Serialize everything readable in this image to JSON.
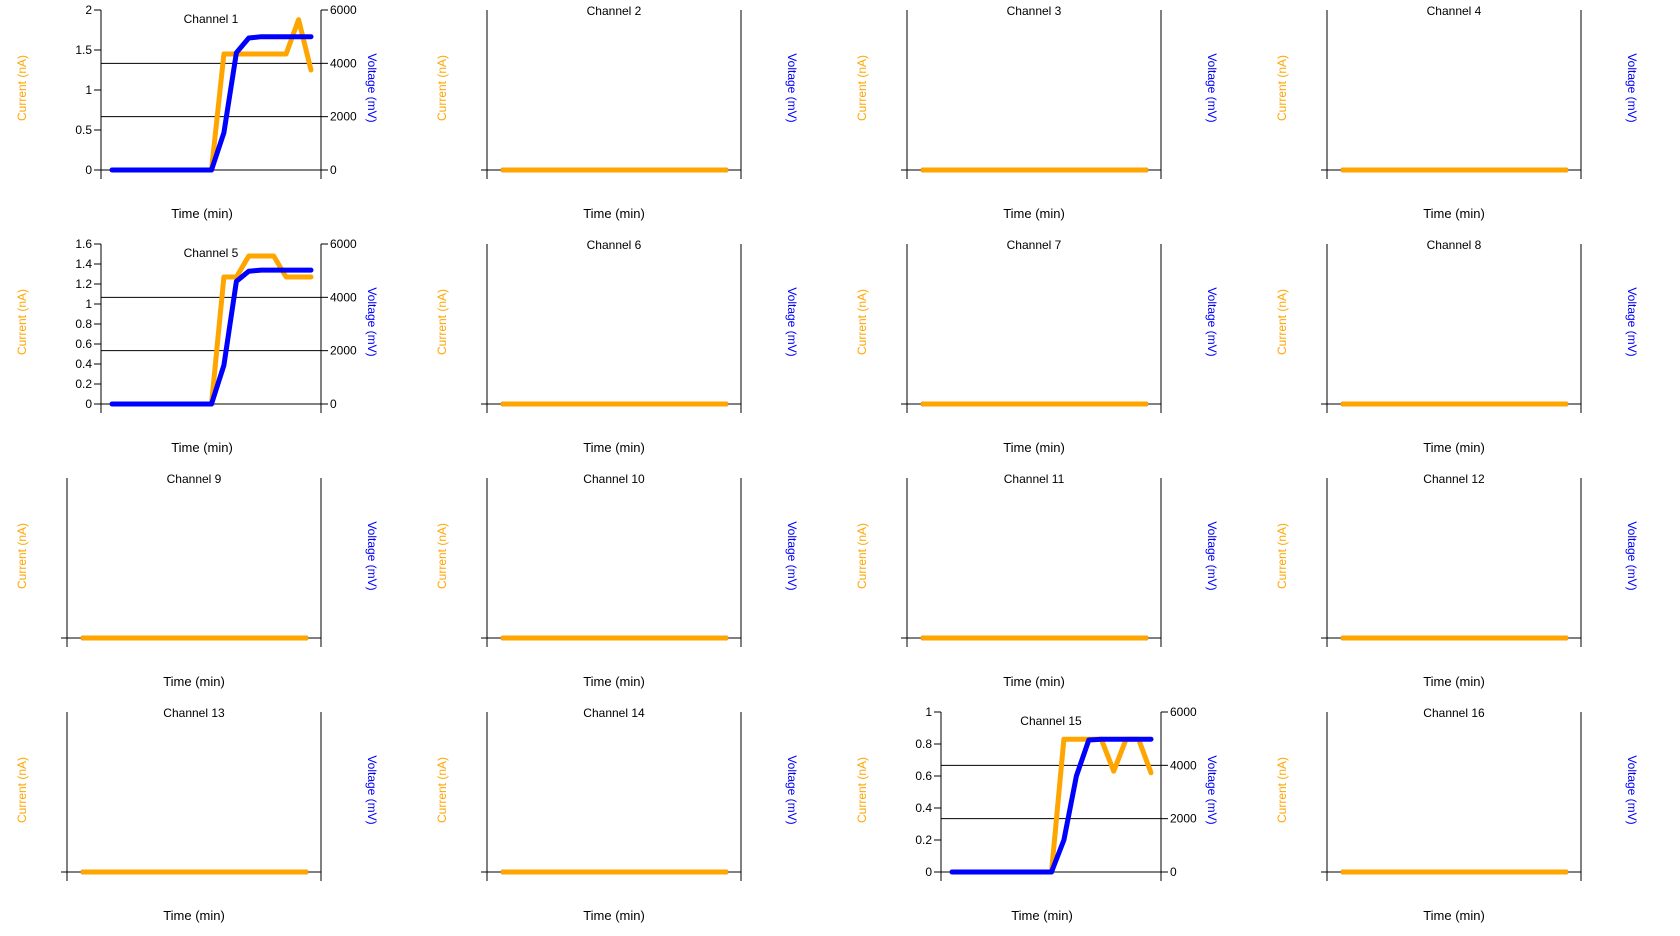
{
  "colors": {
    "current": "#FFA500",
    "voltage": "#0000FF",
    "axis": "#000000",
    "background": "#FFFFFF"
  },
  "x_label": "Time (min)",
  "y_label": "Current (nA)",
  "y2_label": "Voltage (mV)",
  "chart_data": [
    {
      "type": "line",
      "title": "Channel 1",
      "xlabel": "Time (min)",
      "ylabel": "Current (nA)",
      "y2label": "Voltage (mV)",
      "x": [
        0,
        1,
        2,
        3,
        4,
        5,
        6,
        7,
        8,
        9,
        10,
        11,
        12,
        13,
        14,
        15,
        16
      ],
      "y_ticks": [
        0,
        0.5,
        1,
        1.5,
        2
      ],
      "y2_ticks": [
        0,
        2000,
        4000,
        6000
      ],
      "ylim": [
        0,
        2
      ],
      "y2lim": [
        0,
        6000
      ],
      "grid": true,
      "series": [
        {
          "name": "Current (nA)",
          "axis": "left",
          "values": [
            0,
            0,
            0,
            0,
            0,
            0,
            0,
            0,
            0,
            1.45,
            1.45,
            1.45,
            1.45,
            1.45,
            1.45,
            1.88,
            1.25
          ]
        },
        {
          "name": "Voltage (mV)",
          "axis": "right",
          "values": [
            0,
            0,
            0,
            0,
            0,
            0,
            0,
            0,
            0,
            1400,
            4400,
            4950,
            5000,
            5000,
            5000,
            5000,
            5000
          ]
        }
      ]
    },
    {
      "type": "line",
      "title": "Channel 2",
      "xlabel": "Time (min)",
      "ylabel": "Current (nA)",
      "y2label": "Voltage (mV)",
      "x": [
        0,
        16
      ],
      "y_ticks": [],
      "y2_ticks": [],
      "ylim": [
        0,
        1
      ],
      "y2lim": [
        0,
        6000
      ],
      "grid": false,
      "series": [
        {
          "name": "Voltage (mV)",
          "axis": "right",
          "values": [
            0,
            0
          ]
        },
        {
          "name": "Current (nA)",
          "axis": "left",
          "values": [
            0,
            0
          ]
        }
      ]
    },
    {
      "type": "line",
      "title": "Channel 3",
      "xlabel": "Time (min)",
      "ylabel": "Current (nA)",
      "y2label": "Voltage (mV)",
      "x": [
        0,
        16
      ],
      "y_ticks": [],
      "y2_ticks": [],
      "ylim": [
        0,
        1
      ],
      "y2lim": [
        0,
        6000
      ],
      "grid": false,
      "series": [
        {
          "name": "Voltage (mV)",
          "axis": "right",
          "values": [
            0,
            0
          ]
        },
        {
          "name": "Current (nA)",
          "axis": "left",
          "values": [
            0,
            0
          ]
        }
      ]
    },
    {
      "type": "line",
      "title": "Channel 4",
      "xlabel": "Time (min)",
      "ylabel": "Current (nA)",
      "y2label": "Voltage (mV)",
      "x": [
        0,
        16
      ],
      "y_ticks": [],
      "y2_ticks": [],
      "ylim": [
        0,
        1
      ],
      "y2lim": [
        0,
        6000
      ],
      "grid": false,
      "series": [
        {
          "name": "Voltage (mV)",
          "axis": "right",
          "values": [
            0,
            0
          ]
        },
        {
          "name": "Current (nA)",
          "axis": "left",
          "values": [
            0,
            0
          ]
        }
      ]
    },
    {
      "type": "line",
      "title": "Channel 5",
      "xlabel": "Time (min)",
      "ylabel": "Current (nA)",
      "y2label": "Voltage (mV)",
      "x": [
        0,
        1,
        2,
        3,
        4,
        5,
        6,
        7,
        8,
        9,
        10,
        11,
        12,
        13,
        14,
        15,
        16
      ],
      "y_ticks": [
        0,
        0.2,
        0.4,
        0.6,
        0.8,
        1,
        1.2,
        1.4,
        1.6
      ],
      "y2_ticks": [
        0,
        2000,
        4000,
        6000
      ],
      "ylim": [
        0,
        1.6
      ],
      "y2lim": [
        0,
        6000
      ],
      "grid": true,
      "series": [
        {
          "name": "Current (nA)",
          "axis": "left",
          "values": [
            0,
            0,
            0,
            0,
            0,
            0,
            0,
            0,
            0,
            1.27,
            1.27,
            1.48,
            1.48,
            1.48,
            1.27,
            1.27,
            1.27
          ]
        },
        {
          "name": "Voltage (mV)",
          "axis": "right",
          "values": [
            0,
            0,
            0,
            0,
            0,
            0,
            0,
            0,
            0,
            1450,
            4600,
            4980,
            5020,
            5020,
            5020,
            5020,
            5020
          ]
        }
      ]
    },
    {
      "type": "line",
      "title": "Channel 6",
      "xlabel": "Time (min)",
      "ylabel": "Current (nA)",
      "y2label": "Voltage (mV)",
      "x": [
        0,
        16
      ],
      "y_ticks": [],
      "y2_ticks": [],
      "ylim": [
        0,
        1
      ],
      "y2lim": [
        0,
        6000
      ],
      "grid": false,
      "series": [
        {
          "name": "Voltage (mV)",
          "axis": "right",
          "values": [
            0,
            0
          ]
        },
        {
          "name": "Current (nA)",
          "axis": "left",
          "values": [
            0,
            0
          ]
        }
      ]
    },
    {
      "type": "line",
      "title": "Channel 7",
      "xlabel": "Time (min)",
      "ylabel": "Current (nA)",
      "y2label": "Voltage (mV)",
      "x": [
        0,
        16
      ],
      "y_ticks": [],
      "y2_ticks": [],
      "ylim": [
        0,
        1
      ],
      "y2lim": [
        0,
        6000
      ],
      "grid": false,
      "series": [
        {
          "name": "Voltage (mV)",
          "axis": "right",
          "values": [
            0,
            0
          ]
        },
        {
          "name": "Current (nA)",
          "axis": "left",
          "values": [
            0,
            0
          ]
        }
      ]
    },
    {
      "type": "line",
      "title": "Channel 8",
      "xlabel": "Time (min)",
      "ylabel": "Current (nA)",
      "y2label": "Voltage (mV)",
      "x": [
        0,
        16
      ],
      "y_ticks": [],
      "y2_ticks": [],
      "ylim": [
        0,
        1
      ],
      "y2lim": [
        0,
        6000
      ],
      "grid": false,
      "series": [
        {
          "name": "Voltage (mV)",
          "axis": "right",
          "values": [
            0,
            0
          ]
        },
        {
          "name": "Current (nA)",
          "axis": "left",
          "values": [
            0,
            0
          ]
        }
      ]
    },
    {
      "type": "line",
      "title": "Channel 9",
      "xlabel": "Time (min)",
      "ylabel": "Current (nA)",
      "y2label": "Voltage (mV)",
      "x": [
        0,
        16
      ],
      "y_ticks": [],
      "y2_ticks": [],
      "ylim": [
        0,
        1
      ],
      "y2lim": [
        0,
        6000
      ],
      "grid": false,
      "series": [
        {
          "name": "Voltage (mV)",
          "axis": "right",
          "values": [
            0,
            0
          ]
        },
        {
          "name": "Current (nA)",
          "axis": "left",
          "values": [
            0,
            0
          ]
        }
      ]
    },
    {
      "type": "line",
      "title": "Channel 10",
      "xlabel": "Time (min)",
      "ylabel": "Current (nA)",
      "y2label": "Voltage (mV)",
      "x": [
        0,
        16
      ],
      "y_ticks": [],
      "y2_ticks": [],
      "ylim": [
        0,
        1
      ],
      "y2lim": [
        0,
        6000
      ],
      "grid": false,
      "series": [
        {
          "name": "Voltage (mV)",
          "axis": "right",
          "values": [
            0,
            0
          ]
        },
        {
          "name": "Current (nA)",
          "axis": "left",
          "values": [
            0,
            0
          ]
        }
      ]
    },
    {
      "type": "line",
      "title": "Channel 11",
      "xlabel": "Time (min)",
      "ylabel": "Current (nA)",
      "y2label": "Voltage (mV)",
      "x": [
        0,
        16
      ],
      "y_ticks": [],
      "y2_ticks": [],
      "ylim": [
        0,
        1
      ],
      "y2lim": [
        0,
        6000
      ],
      "grid": false,
      "series": [
        {
          "name": "Voltage (mV)",
          "axis": "right",
          "values": [
            0,
            0
          ]
        },
        {
          "name": "Current (nA)",
          "axis": "left",
          "values": [
            0,
            0
          ]
        }
      ]
    },
    {
      "type": "line",
      "title": "Channel 12",
      "xlabel": "Time (min)",
      "ylabel": "Current (nA)",
      "y2label": "Voltage (mV)",
      "x": [
        0,
        16
      ],
      "y_ticks": [],
      "y2_ticks": [],
      "ylim": [
        0,
        1
      ],
      "y2lim": [
        0,
        6000
      ],
      "grid": false,
      "series": [
        {
          "name": "Voltage (mV)",
          "axis": "right",
          "values": [
            0,
            0
          ]
        },
        {
          "name": "Current (nA)",
          "axis": "left",
          "values": [
            0,
            0
          ]
        }
      ]
    },
    {
      "type": "line",
      "title": "Channel 13",
      "xlabel": "Time (min)",
      "ylabel": "Current (nA)",
      "y2label": "Voltage (mV)",
      "x": [
        0,
        16
      ],
      "y_ticks": [],
      "y2_ticks": [],
      "ylim": [
        0,
        1
      ],
      "y2lim": [
        0,
        6000
      ],
      "grid": false,
      "series": [
        {
          "name": "Voltage (mV)",
          "axis": "right",
          "values": [
            0,
            0
          ]
        },
        {
          "name": "Current (nA)",
          "axis": "left",
          "values": [
            0,
            0
          ]
        }
      ]
    },
    {
      "type": "line",
      "title": "Channel 14",
      "xlabel": "Time (min)",
      "ylabel": "Current (nA)",
      "y2label": "Voltage (mV)",
      "x": [
        0,
        16
      ],
      "y_ticks": [],
      "y2_ticks": [],
      "ylim": [
        0,
        1
      ],
      "y2lim": [
        0,
        6000
      ],
      "grid": false,
      "series": [
        {
          "name": "Voltage (mV)",
          "axis": "right",
          "values": [
            0,
            0
          ]
        },
        {
          "name": "Current (nA)",
          "axis": "left",
          "values": [
            0,
            0
          ]
        }
      ]
    },
    {
      "type": "line",
      "title": "Channel 15",
      "xlabel": "Time (min)",
      "ylabel": "Current (nA)",
      "y2label": "Voltage (mV)",
      "x": [
        0,
        1,
        2,
        3,
        4,
        5,
        6,
        7,
        8,
        9,
        10,
        11,
        12,
        13,
        14,
        15,
        16
      ],
      "y_ticks": [
        0,
        0.2,
        0.4,
        0.6,
        0.8,
        1
      ],
      "y2_ticks": [
        0,
        2000,
        4000,
        6000
      ],
      "ylim": [
        0,
        1
      ],
      "y2lim": [
        0,
        6000
      ],
      "grid": true,
      "series": [
        {
          "name": "Current (nA)",
          "axis": "left",
          "values": [
            0,
            0,
            0,
            0,
            0,
            0,
            0,
            0,
            0,
            0.83,
            0.83,
            0.83,
            0.83,
            0.63,
            0.83,
            0.83,
            0.62
          ]
        },
        {
          "name": "Voltage (mV)",
          "axis": "right",
          "values": [
            0,
            0,
            0,
            0,
            0,
            0,
            0,
            0,
            0,
            1200,
            3600,
            4950,
            4980,
            4980,
            4980,
            4980,
            4980
          ]
        }
      ]
    },
    {
      "type": "line",
      "title": "Channel 16",
      "xlabel": "Time (min)",
      "ylabel": "Current (nA)",
      "y2label": "Voltage (mV)",
      "x": [
        0,
        16
      ],
      "y_ticks": [],
      "y2_ticks": [],
      "ylim": [
        0,
        1
      ],
      "y2lim": [
        0,
        6000
      ],
      "grid": false,
      "series": [
        {
          "name": "Voltage (mV)",
          "axis": "right",
          "values": [
            0,
            0
          ]
        },
        {
          "name": "Current (nA)",
          "axis": "left",
          "values": [
            0,
            0
          ]
        }
      ]
    }
  ]
}
